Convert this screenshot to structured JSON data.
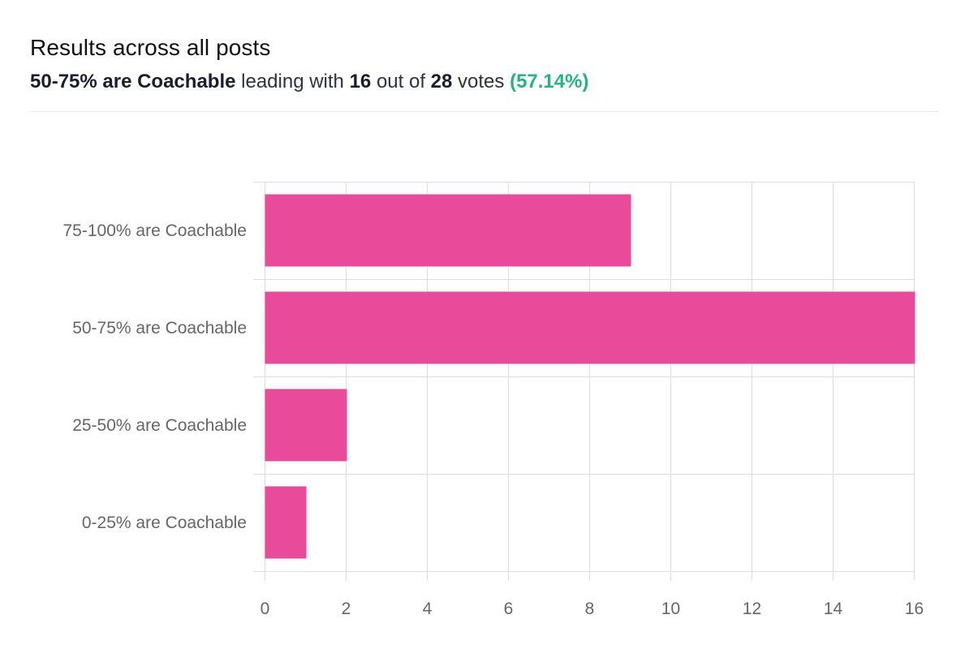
{
  "header": {
    "title": "Results across all posts",
    "leader_label": "50-75% are Coachable",
    "text_leading_with": "leading with",
    "leader_votes": "16",
    "text_out_of": "out of",
    "total_votes": "28",
    "text_votes": "votes",
    "leader_percent": "(57.14%)"
  },
  "colors": {
    "bar": "#ea4a9a",
    "grid": "#dddddd",
    "percent_accent": "#22b67f"
  },
  "chart_data": {
    "type": "bar",
    "orientation": "horizontal",
    "categories": [
      "75-100% are Coachable",
      "50-75% are Coachable",
      "25-50% are Coachable",
      "0-25% are Coachable"
    ],
    "values": [
      9,
      16,
      2,
      1
    ],
    "xlim": [
      0,
      16
    ],
    "xticks": [
      "0",
      "2",
      "4",
      "6",
      "8",
      "10",
      "12",
      "14",
      "16"
    ],
    "grid": true
  }
}
